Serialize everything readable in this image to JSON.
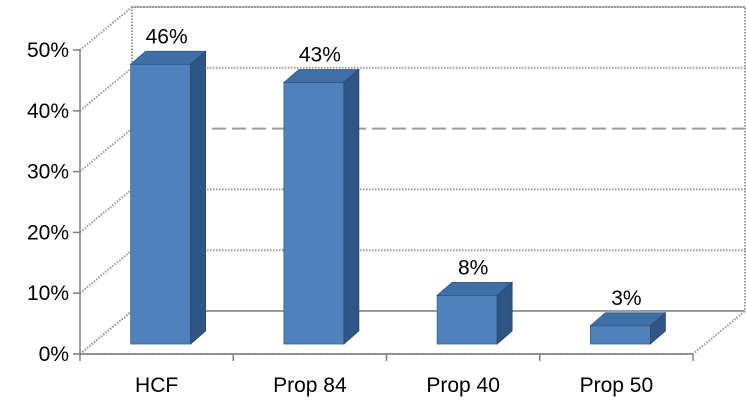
{
  "chart_data": {
    "type": "bar",
    "categories": [
      "HCF",
      "Prop 84",
      "Prop 40",
      "Prop 50"
    ],
    "values": [
      46,
      43,
      8,
      3
    ],
    "data_labels": [
      "46%",
      "43%",
      "8%",
      "3%"
    ],
    "y_ticks": [
      "0%",
      "10%",
      "20%",
      "30%",
      "40%",
      "50%"
    ],
    "ylim": [
      0,
      50
    ],
    "grid": true,
    "three_d": true,
    "colors": {
      "bar_front": "#4f81bd",
      "bar_top": "#3f6fa6",
      "bar_side": "#2f5584",
      "grid": "#9a9a9a",
      "axis": "#7f7f7f"
    }
  }
}
